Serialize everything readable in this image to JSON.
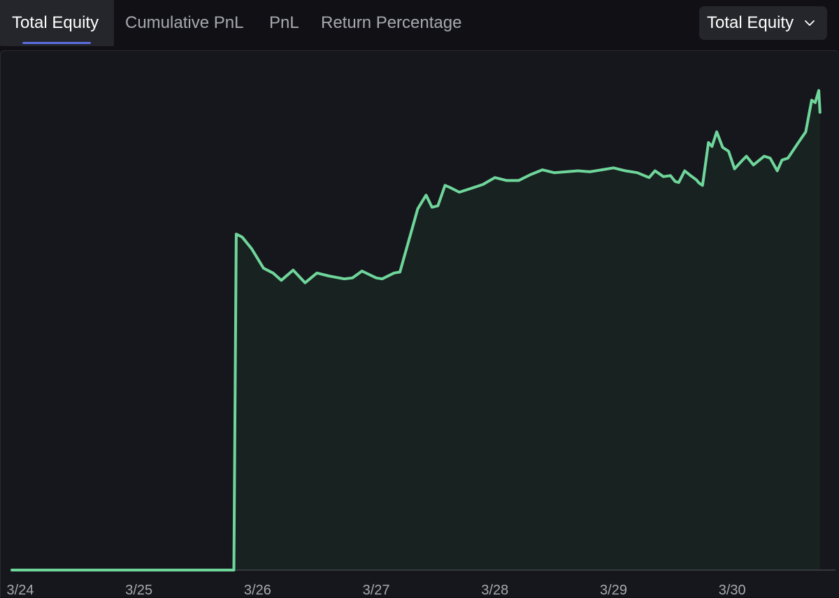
{
  "tabs": [
    {
      "label": "Total Equity",
      "active": true
    },
    {
      "label": "Cumulative PnL",
      "active": false
    },
    {
      "label": "PnL",
      "active": false
    },
    {
      "label": "Return Percentage",
      "active": false
    }
  ],
  "dropdown": {
    "selected": "Total Equity",
    "icon": "chevron-down-icon"
  },
  "colors": {
    "line": "#6fd69b",
    "fill": "#182220",
    "accent": "#5b6ee1",
    "background": "#111115",
    "panel": "#16171c"
  },
  "chart_data": {
    "type": "area",
    "x_tick_labels": [
      "3/24",
      "3/25",
      "3/26",
      "3/27",
      "3/28",
      "3/29",
      "3/30"
    ],
    "grid": false,
    "legend": "none",
    "series_relative_level": [
      [
        0.0,
        0.0
      ],
      [
        1.8,
        0.0
      ],
      [
        1.82,
        0.69
      ],
      [
        1.87,
        0.684
      ],
      [
        1.95,
        0.66
      ],
      [
        2.05,
        0.62
      ],
      [
        2.13,
        0.61
      ],
      [
        2.2,
        0.595
      ],
      [
        2.3,
        0.616
      ],
      [
        2.4,
        0.59
      ],
      [
        2.5,
        0.61
      ],
      [
        2.6,
        0.604
      ],
      [
        2.73,
        0.598
      ],
      [
        2.8,
        0.6
      ],
      [
        2.88,
        0.614
      ],
      [
        3.0,
        0.6
      ],
      [
        3.05,
        0.598
      ],
      [
        3.15,
        0.61
      ],
      [
        3.2,
        0.612
      ],
      [
        3.35,
        0.742
      ],
      [
        3.42,
        0.77
      ],
      [
        3.47,
        0.745
      ],
      [
        3.52,
        0.748
      ],
      [
        3.58,
        0.79
      ],
      [
        3.62,
        0.786
      ],
      [
        3.7,
        0.776
      ],
      [
        3.8,
        0.784
      ],
      [
        3.9,
        0.792
      ],
      [
        4.0,
        0.806
      ],
      [
        4.1,
        0.8
      ],
      [
        4.2,
        0.8
      ],
      [
        4.3,
        0.812
      ],
      [
        4.4,
        0.822
      ],
      [
        4.5,
        0.816
      ],
      [
        4.6,
        0.818
      ],
      [
        4.7,
        0.82
      ],
      [
        4.8,
        0.818
      ],
      [
        4.9,
        0.822
      ],
      [
        5.0,
        0.826
      ],
      [
        5.1,
        0.82
      ],
      [
        5.2,
        0.816
      ],
      [
        5.3,
        0.806
      ],
      [
        5.35,
        0.82
      ],
      [
        5.42,
        0.808
      ],
      [
        5.48,
        0.81
      ],
      [
        5.52,
        0.798
      ],
      [
        5.55,
        0.796
      ],
      [
        5.6,
        0.82
      ],
      [
        5.65,
        0.81
      ],
      [
        5.7,
        0.801
      ],
      [
        5.72,
        0.795
      ],
      [
        5.75,
        0.79
      ],
      [
        5.8,
        0.878
      ],
      [
        5.83,
        0.87
      ],
      [
        5.87,
        0.9
      ],
      [
        5.92,
        0.868
      ],
      [
        5.97,
        0.86
      ],
      [
        6.02,
        0.824
      ],
      [
        6.08,
        0.84
      ],
      [
        6.12,
        0.85
      ],
      [
        6.18,
        0.832
      ],
      [
        6.22,
        0.84
      ],
      [
        6.27,
        0.85
      ],
      [
        6.32,
        0.846
      ],
      [
        6.38,
        0.82
      ],
      [
        6.42,
        0.842
      ],
      [
        6.47,
        0.846
      ],
      [
        6.55,
        0.875
      ],
      [
        6.62,
        0.9
      ],
      [
        6.67,
        0.965
      ],
      [
        6.7,
        0.96
      ],
      [
        6.73,
        0.985
      ],
      [
        6.74,
        0.94
      ]
    ]
  }
}
